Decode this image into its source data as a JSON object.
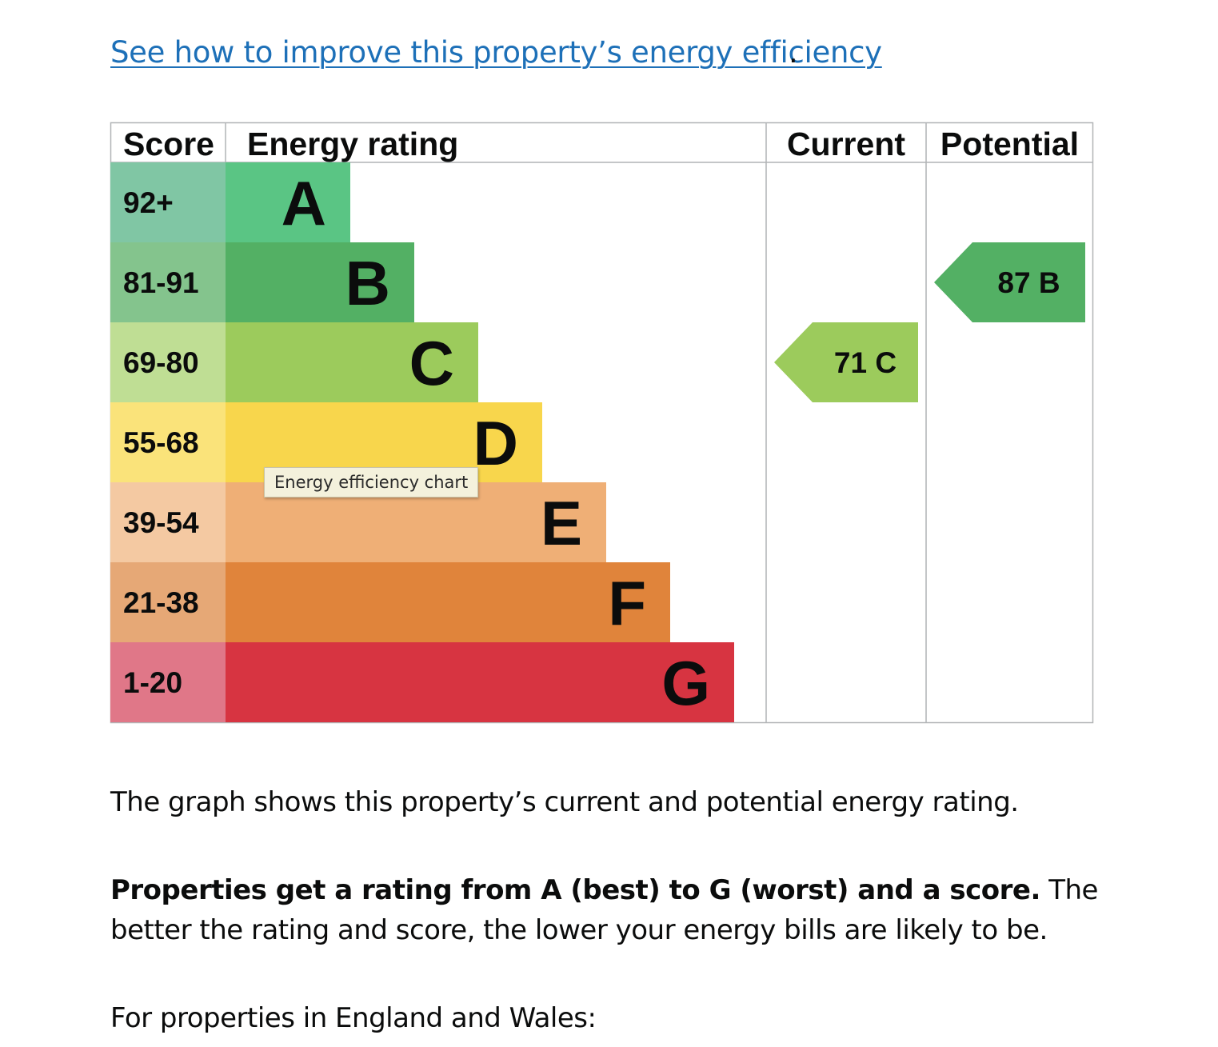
{
  "link": {
    "text": "See how to improve this property’s energy efficiency",
    "trailing": "."
  },
  "chart_data": {
    "type": "bar",
    "headers": {
      "score": "Score",
      "rating": "Energy rating",
      "current": "Current",
      "potential": "Potential"
    },
    "bands": [
      {
        "letter": "A",
        "score": "92+",
        "color": "#5ac584",
        "score_color": "#80c6a4",
        "relative_length": 1
      },
      {
        "letter": "B",
        "score": "81-91",
        "color": "#53b064",
        "score_color": "#84c48d",
        "relative_length": 2
      },
      {
        "letter": "C",
        "score": "69-80",
        "color": "#9ccb5c",
        "score_color": "#bfde94",
        "relative_length": 3
      },
      {
        "letter": "D",
        "score": "55-68",
        "color": "#f8d64c",
        "score_color": "#fae37a",
        "relative_length": 4
      },
      {
        "letter": "E",
        "score": "39-54",
        "color": "#efaf76",
        "score_color": "#f4c9a2",
        "relative_length": 5
      },
      {
        "letter": "F",
        "score": "21-38",
        "color": "#e0843b",
        "score_color": "#e6a876",
        "relative_length": 6
      },
      {
        "letter": "G",
        "score": "1-20",
        "color": "#d73441",
        "score_color": "#e07788",
        "relative_length": 7
      }
    ],
    "current": {
      "score": 71,
      "band": "C",
      "color": "#9ccb5c"
    },
    "potential": {
      "score": 87,
      "band": "B",
      "color": "#53b064"
    }
  },
  "tooltip": "Energy efficiency chart",
  "paragraphs": {
    "p1": "The graph shows this property’s current and potential energy rating.",
    "p2_bold": "Properties get a rating from A (best) to G (worst) and a score.",
    "p2_rest": " The better the rating and score, the lower your energy bills are likely to be.",
    "p3": "For properties in England and Wales:"
  }
}
